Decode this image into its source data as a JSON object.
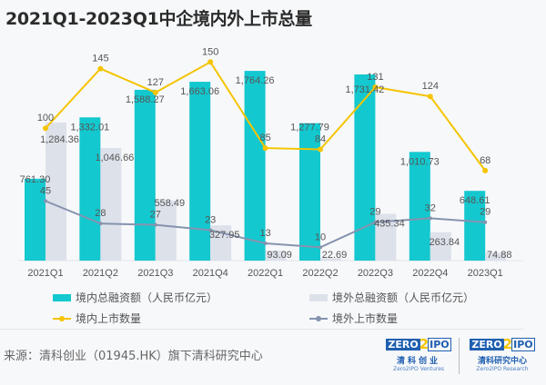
{
  "title": "2021Q1-2023Q1中企境内外上市总量",
  "chart_data": {
    "type": "bar+line",
    "title": "2021Q1-2023Q1中企境内外上市总量",
    "categories": [
      "2021Q1",
      "2021Q2",
      "2021Q3",
      "2021Q4",
      "2022Q1",
      "2022Q2",
      "2022Q3",
      "2022Q4",
      "2023Q1"
    ],
    "series": [
      {
        "name": "境内总融资额（人民币亿元）",
        "type": "bar",
        "axis": "left",
        "color": "#14c8cf",
        "values": [
          761.3,
          1332.01,
          1588.27,
          1663.06,
          1764.26,
          1277.79,
          1731.42,
          1010.73,
          648.61
        ],
        "labels": [
          "761.30",
          "1,332.01",
          "1,588.27",
          "1,663.06",
          "1,764.26",
          "1,277.79",
          "1,731.42",
          "1,010.73",
          "648.61"
        ]
      },
      {
        "name": "境外总融资额（人民币亿元）",
        "type": "bar",
        "axis": "left",
        "color": "#dde1ea",
        "values": [
          1284.36,
          1046.66,
          558.49,
          327.95,
          93.09,
          22.69,
          435.34,
          263.84,
          74.88
        ],
        "labels": [
          "1,284.36",
          "1,046.66",
          "558.49",
          "327.95",
          "93.09",
          "22.69",
          "435.34",
          "263.84",
          "74.88"
        ]
      },
      {
        "name": "境内上市数量",
        "type": "line",
        "axis": "right",
        "color": "#f5c400",
        "values": [
          100,
          145,
          127,
          150,
          85,
          84,
          131,
          124,
          68
        ]
      },
      {
        "name": "境外上市数量",
        "type": "line",
        "axis": "right",
        "color": "#8593ae",
        "values": [
          45,
          28,
          27,
          23,
          13,
          10,
          29,
          32,
          29
        ]
      }
    ],
    "ylim_left": [
      0,
      1900
    ],
    "ylim_right": [
      0,
      155
    ],
    "grid": false,
    "legend": "bottom"
  },
  "footer": {
    "source": "来源：清科创业（01945.HK）旗下清科研究中心",
    "logo1": {
      "zero": "ZERO",
      "two": "2",
      "ipo": "IPO",
      "cn": "清科创业",
      "en": "Zero2IPO Ventures"
    },
    "logo2": {
      "zero": "ZERO",
      "two": "2",
      "ipo": "IPO",
      "cn": "清科研究中心",
      "en": "Zero2IPO Research"
    }
  }
}
